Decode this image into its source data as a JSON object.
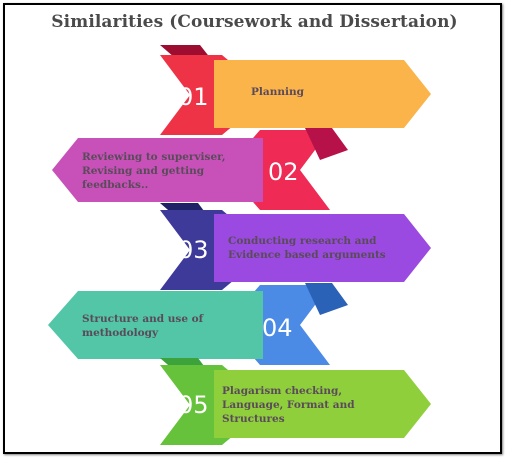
{
  "title": "Similarities (Coursework and Dissertaion)",
  "steps": [
    {
      "number": "01",
      "lines": [
        "Planning"
      ],
      "colors": {
        "dark": "#c4123a",
        "mid": "#f03c4c",
        "banner": "#fbb44a"
      }
    },
    {
      "number": "02",
      "lines": [
        "Reviewing to superviser,",
        "Revising and getting",
        "feedbacks.."
      ],
      "colors": {
        "dark": "#b7114a",
        "mid": "#ee2a55",
        "banner": "#c851b9"
      }
    },
    {
      "number": "03",
      "lines": [
        "Conducting research and",
        "Evidence based arguments"
      ],
      "colors": {
        "dark": "#1f2266",
        "mid": "#3d3a9a",
        "banner": "#9a4ae0"
      }
    },
    {
      "number": "04",
      "lines": [
        "Structure and use of",
        "methodology"
      ],
      "colors": {
        "dark": "#2a62b8",
        "mid": "#4b8be6",
        "banner": "#52c6a6"
      }
    },
    {
      "number": "05",
      "lines": [
        "Plagarism checking,",
        "Language, Format and",
        "Structures"
      ],
      "colors": {
        "dark": "#3ca23c",
        "mid": "#66c23a",
        "banner": "#8fcf3c"
      }
    }
  ]
}
